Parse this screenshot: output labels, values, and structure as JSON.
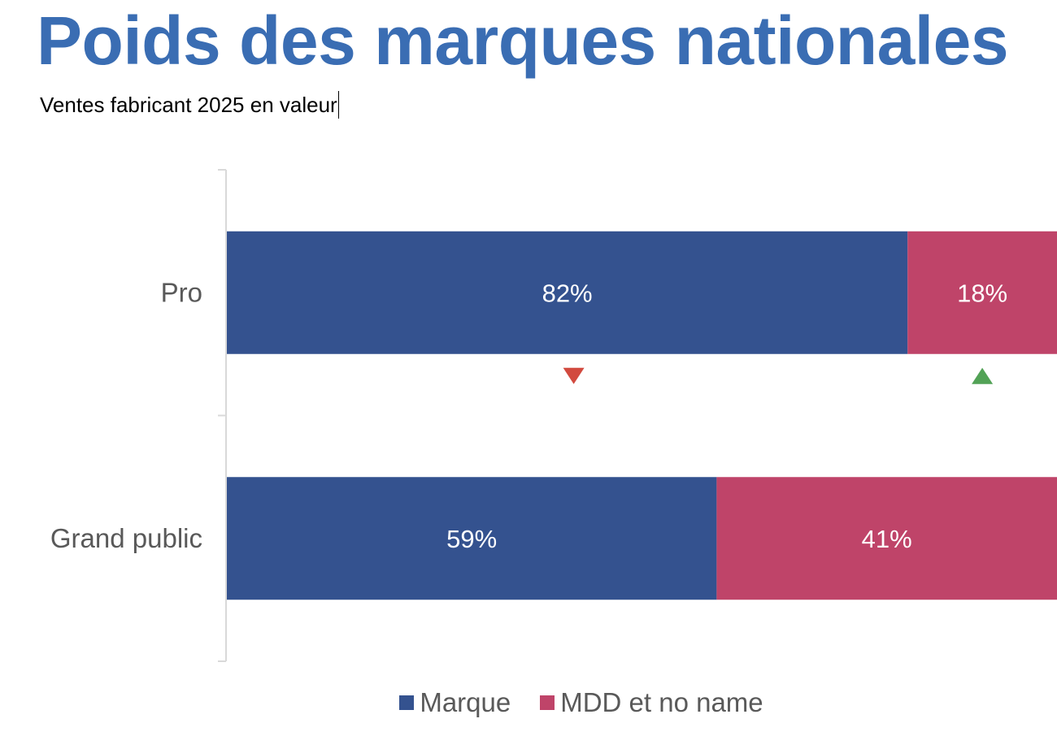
{
  "title": "Poids des marques nationales",
  "subtitle": "Ventes fabricant 2025 en valeur",
  "colors": {
    "title": "#3a6db3",
    "marque": "#34528f",
    "mdd": "#bf4469",
    "trend_down": "#d24a3f",
    "trend_up": "#52a256",
    "axis_text": "#595959",
    "axis_line": "#d9d9d9"
  },
  "chart_data": {
    "type": "bar",
    "orientation": "horizontal",
    "stacked": "percent",
    "categories": [
      "Pro",
      "Grand public"
    ],
    "series": [
      {
        "name": "Marque",
        "values": [
          82,
          59
        ],
        "labels": [
          "82%",
          "59%"
        ]
      },
      {
        "name": "MDD et no name",
        "values": [
          18,
          41
        ],
        "labels": [
          "18%",
          "41%"
        ]
      }
    ],
    "xlim": [
      0,
      100
    ],
    "grid": false,
    "legend_position": "bottom",
    "trend_markers": [
      {
        "category": "Pro",
        "series": "Marque",
        "direction": "down",
        "icon": "triangle-down-icon"
      },
      {
        "category": "Pro",
        "series": "MDD et no name",
        "direction": "up",
        "icon": "triangle-up-icon"
      }
    ]
  },
  "legend": {
    "items": [
      {
        "label": "Marque"
      },
      {
        "label": "MDD et no name"
      }
    ]
  }
}
